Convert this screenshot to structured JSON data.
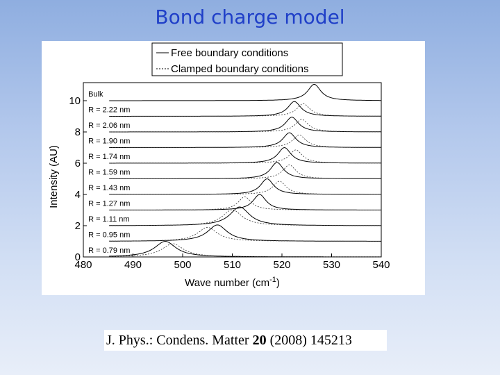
{
  "slide": {
    "title": "Bond charge model",
    "citation": {
      "journal": "J. Phys.: Condens. Matter ",
      "volume": "20",
      "rest": " (2008) 145213"
    }
  },
  "chart_data": {
    "type": "line",
    "xlabel": "Wave number (cm",
    "xlabel_sup": "-1",
    "xlabel_close": ")",
    "ylabel": "Intensity (AU)",
    "xlim": [
      480,
      540
    ],
    "ylim": [
      0,
      11
    ],
    "xticks": [
      480,
      490,
      500,
      510,
      520,
      530,
      540
    ],
    "yticks": [
      0,
      2,
      4,
      6,
      8,
      10
    ],
    "legend": {
      "position": "top-center",
      "entries": [
        {
          "label": "Free boundary conditions",
          "style": "solid"
        },
        {
          "label": "Clamped boundary conditions",
          "style": "dashed"
        }
      ]
    },
    "series": [
      {
        "label": "Bulk",
        "offset": 10,
        "solid_peak": 526.5,
        "solid_height": 1.05,
        "dashed_peak": null
      },
      {
        "label": "R =  2.22 nm",
        "offset": 9,
        "solid_peak": 522.5,
        "solid_height": 0.95,
        "dashed_peak": 524.3
      },
      {
        "label": "R =  2.06 nm",
        "offset": 8,
        "solid_peak": 522.0,
        "solid_height": 0.95,
        "dashed_peak": 524.0
      },
      {
        "label": "R =  1.90 nm",
        "offset": 7,
        "solid_peak": 521.5,
        "solid_height": 0.95,
        "dashed_peak": 523.5
      },
      {
        "label": "R =  1.74 nm",
        "offset": 6,
        "solid_peak": 520.5,
        "solid_height": 1.0,
        "dashed_peak": 522.8
      },
      {
        "label": "R =  1.59 nm",
        "offset": 5,
        "solid_peak": 519.0,
        "solid_height": 1.05,
        "dashed_peak": 521.5
      },
      {
        "label": "R =  1.43 nm",
        "offset": 4,
        "solid_peak": 517.0,
        "solid_height": 1.0,
        "dashed_peak": 519.5
      },
      {
        "label": "R =  1.27 nm",
        "offset": 3,
        "solid_peak": 515.5,
        "solid_height": 1.0,
        "dashed_peak": 512.5
      },
      {
        "label": "R =  1.11 nm",
        "offset": 2,
        "solid_peak": 511.5,
        "solid_height": 1.2,
        "dashed_peak": 510.0
      },
      {
        "label": "R =  0.95 nm",
        "offset": 1,
        "solid_peak": 507.0,
        "solid_height": 1.05,
        "dashed_peak": 505.0
      },
      {
        "label": "R =  0.79 nm",
        "offset": 0,
        "solid_peak": 496.5,
        "solid_height": 1.0,
        "dashed_peak": 498.0
      }
    ]
  }
}
